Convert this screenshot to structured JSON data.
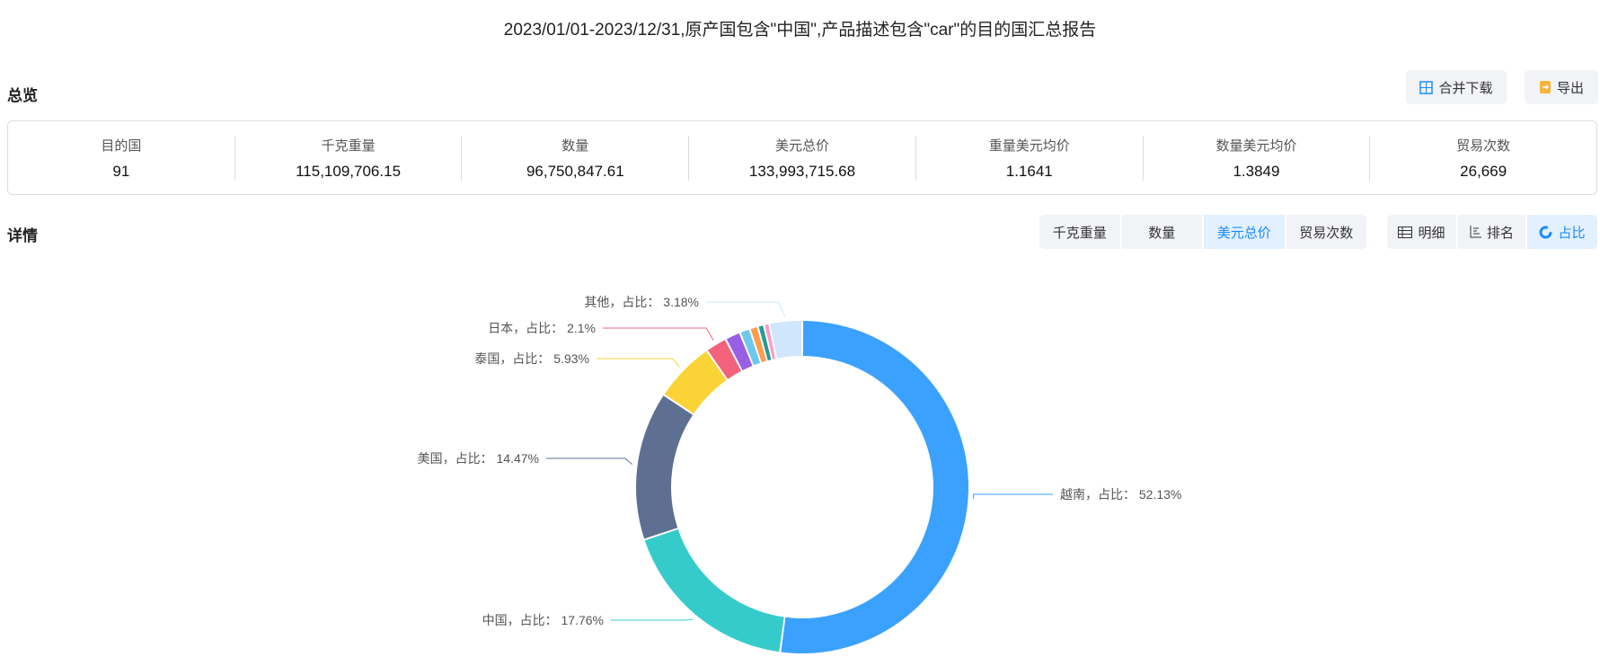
{
  "title": "2023/01/01-2023/12/31,原产国包含\"中国\",产品描述包含\"car\"的目的国汇总报告",
  "overview": {
    "heading": "总览",
    "merge_download": "合并下载",
    "export": "导出",
    "stats": [
      {
        "label": "目的国",
        "value": "91"
      },
      {
        "label": "千克重量",
        "value": "115,109,706.15"
      },
      {
        "label": "数量",
        "value": "96,750,847.61"
      },
      {
        "label": "美元总价",
        "value": "133,993,715.68"
      },
      {
        "label": "重量美元均价",
        "value": "1.1641"
      },
      {
        "label": "数量美元均价",
        "value": "1.3849"
      },
      {
        "label": "贸易次数",
        "value": "26,669"
      }
    ]
  },
  "detail": {
    "heading": "详情",
    "metric_tabs": [
      "千克重量",
      "数量",
      "美元总价",
      "贸易次数"
    ],
    "active_metric": "美元总价",
    "view_tabs": [
      "明细",
      "排名",
      "占比"
    ],
    "active_view": "占比"
  },
  "chart_data": {
    "type": "pie",
    "variant": "donut",
    "label_format": "{name}，占比： {value}%",
    "slices": [
      {
        "name": "越南",
        "value": 52.13,
        "color": "#3ba1ff"
      },
      {
        "name": "中国",
        "value": 17.76,
        "color": "#36cbcb"
      },
      {
        "name": "美国",
        "value": 14.47,
        "color": "#5d7092"
      },
      {
        "name": "泰国",
        "value": 5.93,
        "color": "#fad337"
      },
      {
        "name": "日本",
        "value": 2.1,
        "color": "#f2637b"
      },
      {
        "name": "",
        "value": 1.5,
        "color": "#975fe4"
      },
      {
        "name": "",
        "value": 1.0,
        "color": "#6dc8ec"
      },
      {
        "name": "",
        "value": 0.8,
        "color": "#ff9d4d"
      },
      {
        "name": "",
        "value": 0.6,
        "color": "#269a99"
      },
      {
        "name": "",
        "value": 0.53,
        "color": "#ff99c3"
      },
      {
        "name": "其他",
        "value": 3.18,
        "color": "#cfe6fc"
      }
    ]
  }
}
